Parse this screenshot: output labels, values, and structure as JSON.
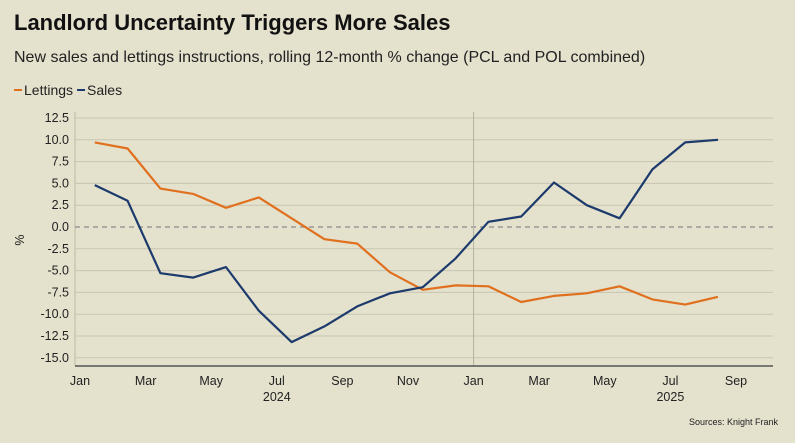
{
  "chart_data": {
    "type": "line",
    "title": "Landlord Uncertainty Triggers More Sales",
    "subtitle": "New sales and lettings instructions, rolling 12-month % change (PCL and POL combined)",
    "xlabel": "",
    "ylabel": "%",
    "ylim": [
      -15,
      12.5
    ],
    "yticks": [
      "12.5",
      "10.0",
      "7.5",
      "5.0",
      "2.5",
      "0.0",
      "-2.5",
      "-5.0",
      "-7.5",
      "-10.0",
      "-12.5",
      "-15.0"
    ],
    "ytick_values": [
      12.5,
      10,
      7.5,
      5,
      2.5,
      0,
      -2.5,
      -5,
      -7.5,
      -10,
      -12.5,
      -15
    ],
    "xticks": [
      {
        "label": "Jan",
        "month": 0
      },
      {
        "label": "Mar",
        "month": 2
      },
      {
        "label": "May",
        "month": 4
      },
      {
        "label": "Jul",
        "month": 6
      },
      {
        "label": "Sep",
        "month": 8
      },
      {
        "label": "Nov",
        "month": 10
      },
      {
        "label": "Jan",
        "month": 12
      },
      {
        "label": "Mar",
        "month": 14
      },
      {
        "label": "May",
        "month": 16
      },
      {
        "label": "Jul",
        "month": 18
      },
      {
        "label": "Sep",
        "month": 20
      }
    ],
    "years": [
      {
        "label": "2024",
        "month": 6
      },
      {
        "label": "2025",
        "month": 18
      }
    ],
    "x": [
      "Jan 2024",
      "Feb 2024",
      "Mar 2024",
      "Apr 2024",
      "May 2024",
      "Jun 2024",
      "Jul 2024",
      "Aug 2024",
      "Sep 2024",
      "Oct 2024",
      "Nov 2024",
      "Dec 2024",
      "Jan 2025",
      "Feb 2025",
      "Mar 2025",
      "Apr 2025",
      "May 2025",
      "Jun 2025",
      "Jul 2025",
      "Aug 2025"
    ],
    "series": [
      {
        "name": "Lettings",
        "color": "#e0701e",
        "values": [
          9.7,
          9.0,
          4.4,
          3.8,
          2.2,
          3.4,
          1.0,
          -1.4,
          -1.9,
          -5.2,
          -7.2,
          -6.7,
          -6.8,
          -8.6,
          -7.9,
          -7.6,
          -6.8,
          -8.3,
          -8.9,
          -8.0
        ]
      },
      {
        "name": "Sales",
        "color": "#1c3a6c",
        "values": [
          4.8,
          3.0,
          -5.3,
          -5.8,
          -4.6,
          -9.6,
          -13.2,
          -11.4,
          -9.1,
          -7.6,
          -6.9,
          -3.6,
          0.6,
          1.2,
          5.1,
          2.5,
          1.0,
          6.6,
          9.7,
          10.0
        ]
      }
    ],
    "grid": true,
    "legend_position": "top-left",
    "source": "Sources: Knight Frank"
  }
}
